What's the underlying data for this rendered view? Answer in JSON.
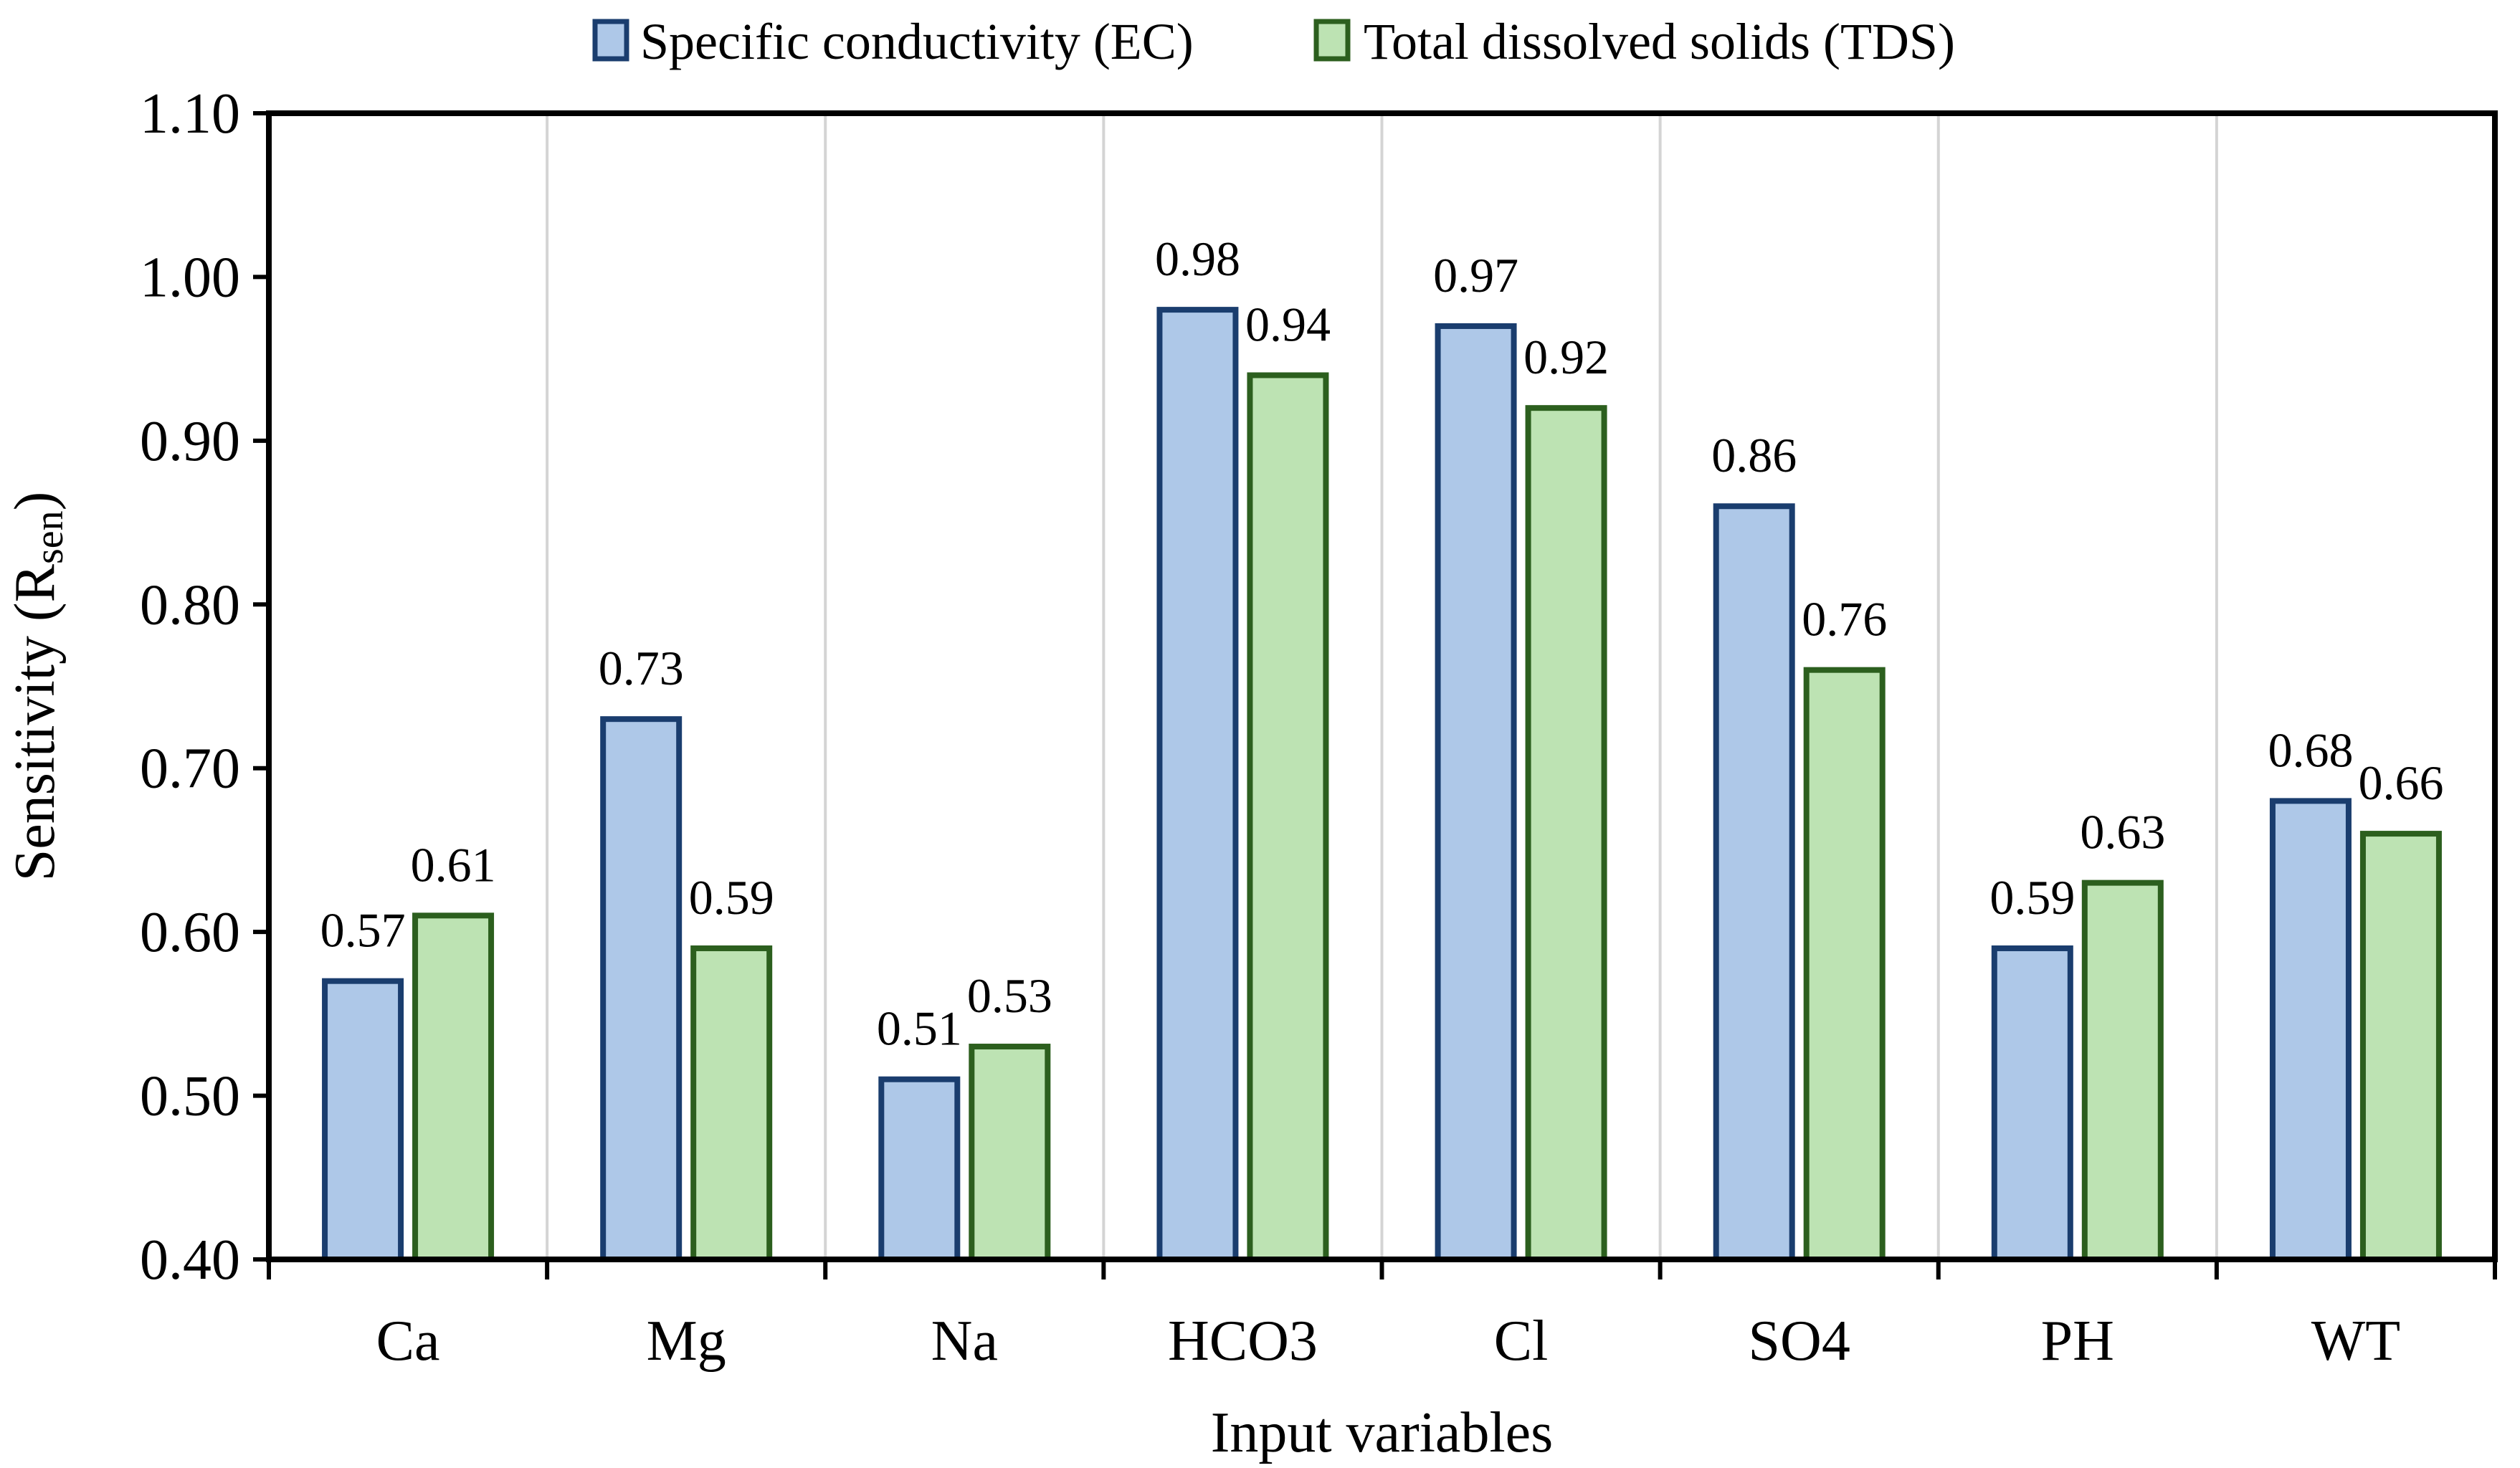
{
  "chart_data": {
    "type": "bar",
    "title": "",
    "xlabel": "Input variables",
    "ylabel": {
      "main": "Sensitivity (R",
      "subscript": "sen",
      "close": ")"
    },
    "ylim": [
      0.4,
      1.1
    ],
    "yticks": [
      0.4,
      0.5,
      0.6,
      0.7,
      0.8,
      0.9,
      1.0,
      1.1
    ],
    "ytick_labels": [
      "0.40",
      "0.50",
      "0.60",
      "0.70",
      "0.80",
      "0.90",
      "1.00",
      "1.10"
    ],
    "categories": [
      "Ca",
      "Mg",
      "Na",
      "HCO3",
      "Cl",
      "SO4",
      "PH",
      "WT"
    ],
    "legend_position": "top-center",
    "grid": "vertical category separators",
    "series": [
      {
        "name": "Specific conductivity (EC)",
        "values": [
          0.57,
          0.73,
          0.51,
          0.98,
          0.97,
          0.86,
          0.59,
          0.68
        ],
        "labels": [
          "0.57",
          "0.73",
          "0.51",
          "0.98",
          "0.97",
          "0.86",
          "0.59",
          "0.68"
        ],
        "fill": "#aec8e8",
        "stroke": "#1a3d6e"
      },
      {
        "name": "Total dissolved solids (TDS)",
        "values": [
          0.61,
          0.59,
          0.53,
          0.94,
          0.92,
          0.76,
          0.63,
          0.66
        ],
        "labels": [
          "0.61",
          "0.59",
          "0.53",
          "0.94",
          "0.92",
          "0.76",
          "0.63",
          "0.66"
        ],
        "fill": "#bde3b3",
        "stroke": "#2c5f1e"
      }
    ]
  }
}
